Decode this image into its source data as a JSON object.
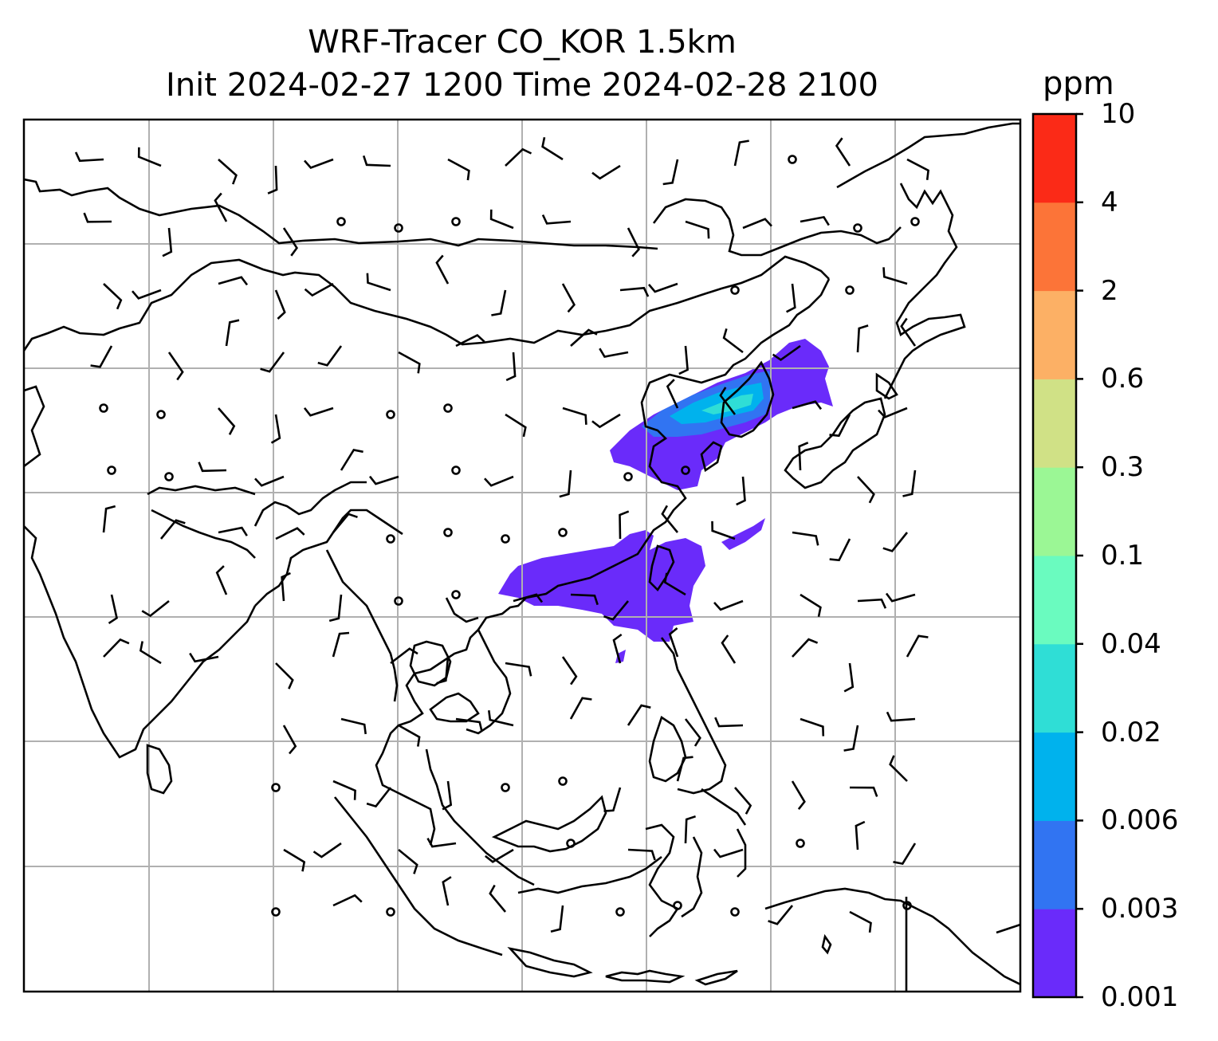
{
  "title": {
    "line1": "WRF-Tracer CO_KOR 1.5km",
    "line2": "Init 2024-02-27 1200 Time 2024-02-28 2100"
  },
  "colorbar": {
    "unit": "ppm",
    "levels": [
      "0.001",
      "0.003",
      "0.006",
      "0.02",
      "0.04",
      "0.1",
      "0.3",
      "0.6",
      "2",
      "4",
      "10"
    ],
    "colors": [
      "#6a2bfa",
      "#3174f2",
      "#00b2ed",
      "#2fded6",
      "#6afbbf",
      "#9bf795",
      "#d0e186",
      "#fcb065",
      "#fc7438",
      "#fb2a17"
    ]
  },
  "map": {
    "projection": "lat-lon",
    "gridlines": true,
    "grid_color": "#b0b0b0",
    "coastline_color": "#000000",
    "wind_barb_color": "#000000"
  }
}
